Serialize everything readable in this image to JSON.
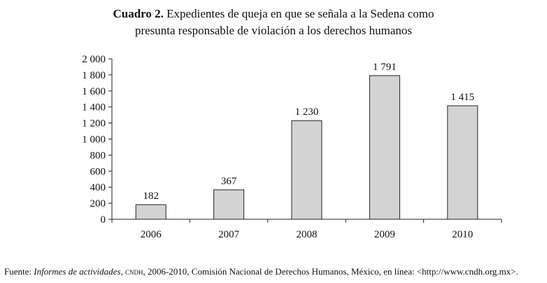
{
  "title": {
    "label": "Cuadro 2.",
    "line1": "Expedientes de queja en que se señala a la Sedena como",
    "line2": "presunta responsable de violación a los derechos humanos"
  },
  "chart_data": {
    "type": "bar",
    "categories": [
      "2006",
      "2007",
      "2008",
      "2009",
      "2010"
    ],
    "values": [
      182,
      367,
      1230,
      1791,
      1415
    ],
    "value_labels": [
      "182",
      "367",
      "1 230",
      "1 791",
      "1 415"
    ],
    "yticks": [
      0,
      200,
      400,
      600,
      800,
      1000,
      1200,
      1400,
      1600,
      1800,
      2000
    ],
    "ytick_labels": [
      "0",
      "200",
      "400",
      "600",
      "800",
      "1 000",
      "1 200",
      "1 400",
      "1 600",
      "1 800",
      "2 000"
    ],
    "ylim": [
      0,
      2000
    ],
    "xlabel": "",
    "ylabel": "",
    "grid": false,
    "bar_color": "#d3d3d3",
    "bar_edge": "#222222"
  },
  "source": {
    "prefix": "Fuente: ",
    "publication": "Informes de actividades",
    "org_abbr": "cndh",
    "details": ", 2006-2010, Comisión Nacional de Derechos Humanos, México, en línea: <",
    "url": "http://www.cndh.org.mx",
    "suffix": ">."
  }
}
